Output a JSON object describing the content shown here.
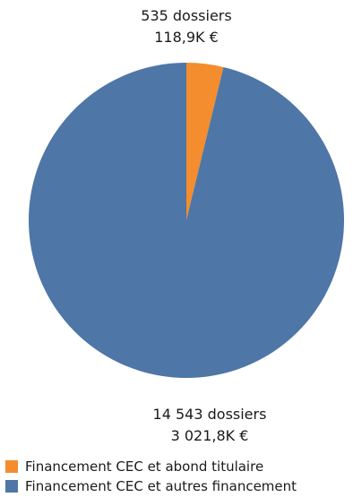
{
  "chart_data": {
    "type": "pie",
    "categories": [
      "Financement CEC et abond titulaire",
      "Financement CEC et autres financement"
    ],
    "values": [
      118.9,
      3021.8
    ],
    "dossiers": [
      535,
      14543
    ],
    "data_labels": [
      {
        "line1": "535 dossiers",
        "line2": "118,9K €"
      },
      {
        "line1": "14 543 dossiers",
        "line2": "3 021,8K €"
      }
    ],
    "colors": [
      "#F38D2E",
      "#4E76A6"
    ],
    "legend_position": "bottom-left"
  }
}
